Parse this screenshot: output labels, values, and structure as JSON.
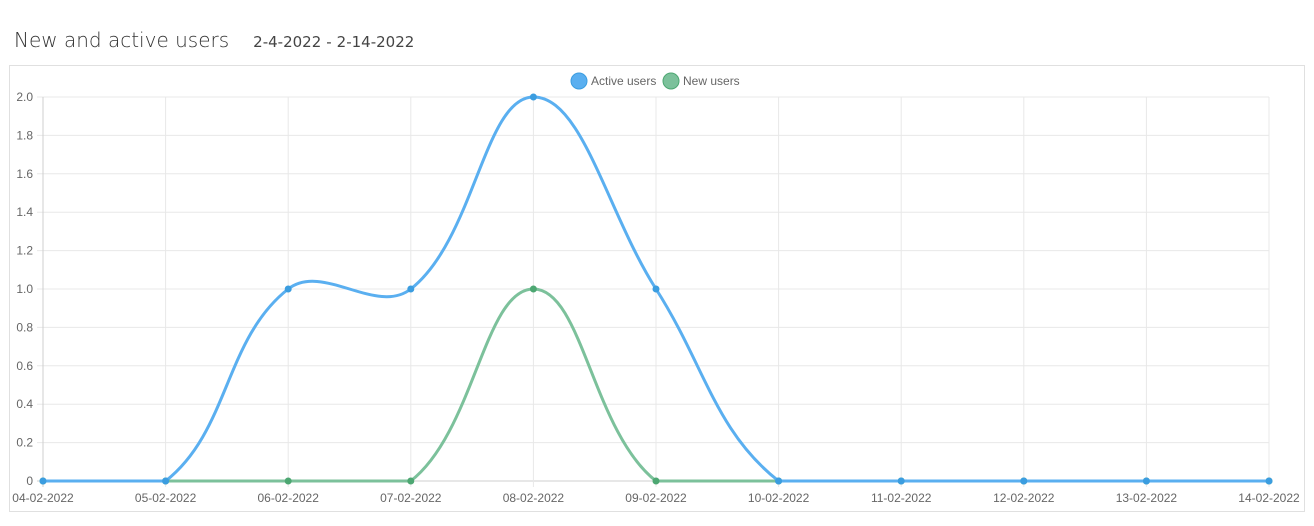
{
  "header": {
    "title": "New and active users",
    "date_from": "2-4-2022",
    "separator": "-",
    "date_to": "2-14-2022"
  },
  "chart_data": {
    "type": "line",
    "categories": [
      "04-02-2022",
      "05-02-2022",
      "06-02-2022",
      "07-02-2022",
      "08-02-2022",
      "09-02-2022",
      "10-02-2022",
      "11-02-2022",
      "12-02-2022",
      "13-02-2022",
      "14-02-2022"
    ],
    "series": [
      {
        "name": "Active users",
        "values": [
          0,
          0,
          1,
          1,
          2,
          1,
          0,
          0,
          0,
          0,
          0
        ],
        "color": "#5aaff0",
        "point_color": "#3b9de0"
      },
      {
        "name": "New users",
        "values": [
          0,
          0,
          0,
          0,
          1,
          0,
          0,
          0,
          0,
          0,
          0
        ],
        "color": "#7cc19b",
        "point_color": "#4da772"
      }
    ],
    "ylim": [
      0,
      2
    ],
    "yticks": [
      "0",
      "0.2",
      "0.4",
      "0.6",
      "0.8",
      "1.0",
      "1.2",
      "1.4",
      "1.6",
      "1.8",
      "2.0"
    ],
    "grid": true,
    "legend": "top-center"
  }
}
